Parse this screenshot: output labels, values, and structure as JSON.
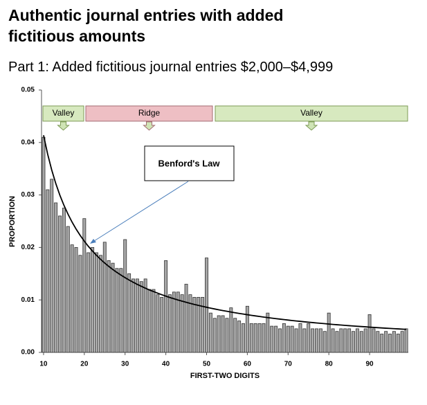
{
  "chart_data": {
    "type": "bar",
    "title_lines": [
      "Authentic journal entries with added",
      "fictitious amounts"
    ],
    "subtitle": "Part 1: Added fictitious journal entries $2,000–$4,999",
    "x_label": "FIRST-TWO DIGITS",
    "y_label": "PROPORTION",
    "annotations": [
      "Valley",
      "Ridge",
      "Valley"
    ],
    "x": [
      10,
      11,
      12,
      13,
      14,
      15,
      16,
      17,
      18,
      19,
      20,
      21,
      22,
      23,
      24,
      25,
      26,
      27,
      28,
      29,
      30,
      31,
      32,
      33,
      34,
      35,
      36,
      37,
      38,
      39,
      40,
      41,
      42,
      43,
      44,
      45,
      46,
      47,
      48,
      49,
      50,
      51,
      52,
      53,
      54,
      55,
      56,
      57,
      58,
      59,
      60,
      61,
      62,
      63,
      64,
      65,
      66,
      67,
      68,
      69,
      70,
      71,
      72,
      73,
      74,
      75,
      76,
      77,
      78,
      79,
      80,
      81,
      82,
      83,
      84,
      85,
      86,
      87,
      88,
      89,
      90,
      91,
      92,
      93,
      94,
      95,
      96,
      97,
      98,
      99
    ],
    "series": [
      {
        "type": "bar",
        "color": "#a6a6a6",
        "values": [
          0.041,
          0.031,
          0.033,
          0.0285,
          0.026,
          0.0275,
          0.024,
          0.0205,
          0.02,
          0.0185,
          0.0255,
          0.019,
          0.02,
          0.019,
          0.0185,
          0.021,
          0.0175,
          0.017,
          0.016,
          0.016,
          0.0215,
          0.015,
          0.014,
          0.014,
          0.0135,
          0.014,
          0.012,
          0.012,
          0.011,
          0.0105,
          0.0175,
          0.011,
          0.0115,
          0.0115,
          0.011,
          0.013,
          0.011,
          0.0105,
          0.0105,
          0.0105,
          0.018,
          0.0075,
          0.0065,
          0.007,
          0.007,
          0.0065,
          0.0085,
          0.0065,
          0.006,
          0.0055,
          0.0088,
          0.0055,
          0.0055,
          0.0055,
          0.0055,
          0.0075,
          0.005,
          0.005,
          0.0045,
          0.0055,
          0.005,
          0.005,
          0.0045,
          0.0055,
          0.0045,
          0.0055,
          0.0045,
          0.0045,
          0.0045,
          0.004,
          0.0075,
          0.0045,
          0.004,
          0.0045,
          0.0045,
          0.0045,
          0.004,
          0.0045,
          0.004,
          0.0045,
          0.0072,
          0.0045,
          0.004,
          0.0035,
          0.004,
          0.0035,
          0.004,
          0.0035,
          0.004,
          0.0045
        ]
      },
      {
        "type": "line",
        "name": "Benford's Law",
        "color": "#000000",
        "values": [
          0.04139,
          0.03779,
          0.03476,
          0.03218,
          0.02996,
          0.02803,
          0.02633,
          0.02482,
          0.02348,
          0.02228,
          0.02119,
          0.0202,
          0.01931,
          0.01848,
          0.01773,
          0.01703,
          0.01639,
          0.01579,
          0.01524,
          0.01472,
          0.01424,
          0.01379,
          0.01336,
          0.01296,
          0.01259,
          0.01223,
          0.01189,
          0.01158,
          0.01128,
          0.01099,
          0.01072,
          0.01046,
          0.01022,
          0.00998,
          0.00976,
          0.00955,
          0.00934,
          0.00914,
          0.00896,
          0.00877,
          0.0086,
          0.00843,
          0.00827,
          0.00812,
          0.00797,
          0.00783,
          0.00769,
          0.00755,
          0.00742,
          0.0073,
          0.00718,
          0.00706,
          0.00695,
          0.00684,
          0.00673,
          0.00663,
          0.00653,
          0.00643,
          0.00634,
          0.00625,
          0.00616,
          0.00607,
          0.00599,
          0.00591,
          0.00583,
          0.00575,
          0.00568,
          0.00561,
          0.00554,
          0.00547,
          0.0054,
          0.00533,
          0.00527,
          0.00521,
          0.00515,
          0.00509,
          0.00503,
          0.00497,
          0.00492,
          0.00487,
          0.00481,
          0.00476,
          0.00471,
          0.00466,
          0.00461,
          0.00457,
          0.00452,
          0.00448,
          0.00443,
          0.00439
        ]
      }
    ],
    "xlim": [
      9.5,
      99.5
    ],
    "xticks": [
      10,
      20,
      30,
      40,
      50,
      60,
      70,
      80,
      90
    ],
    "ylim": [
      0,
      0.05
    ],
    "yticks": [
      {
        "value": 0,
        "label": "0.00"
      },
      0.01,
      0.02,
      0.03,
      0.04,
      0.05
    ],
    "grid": false
  }
}
